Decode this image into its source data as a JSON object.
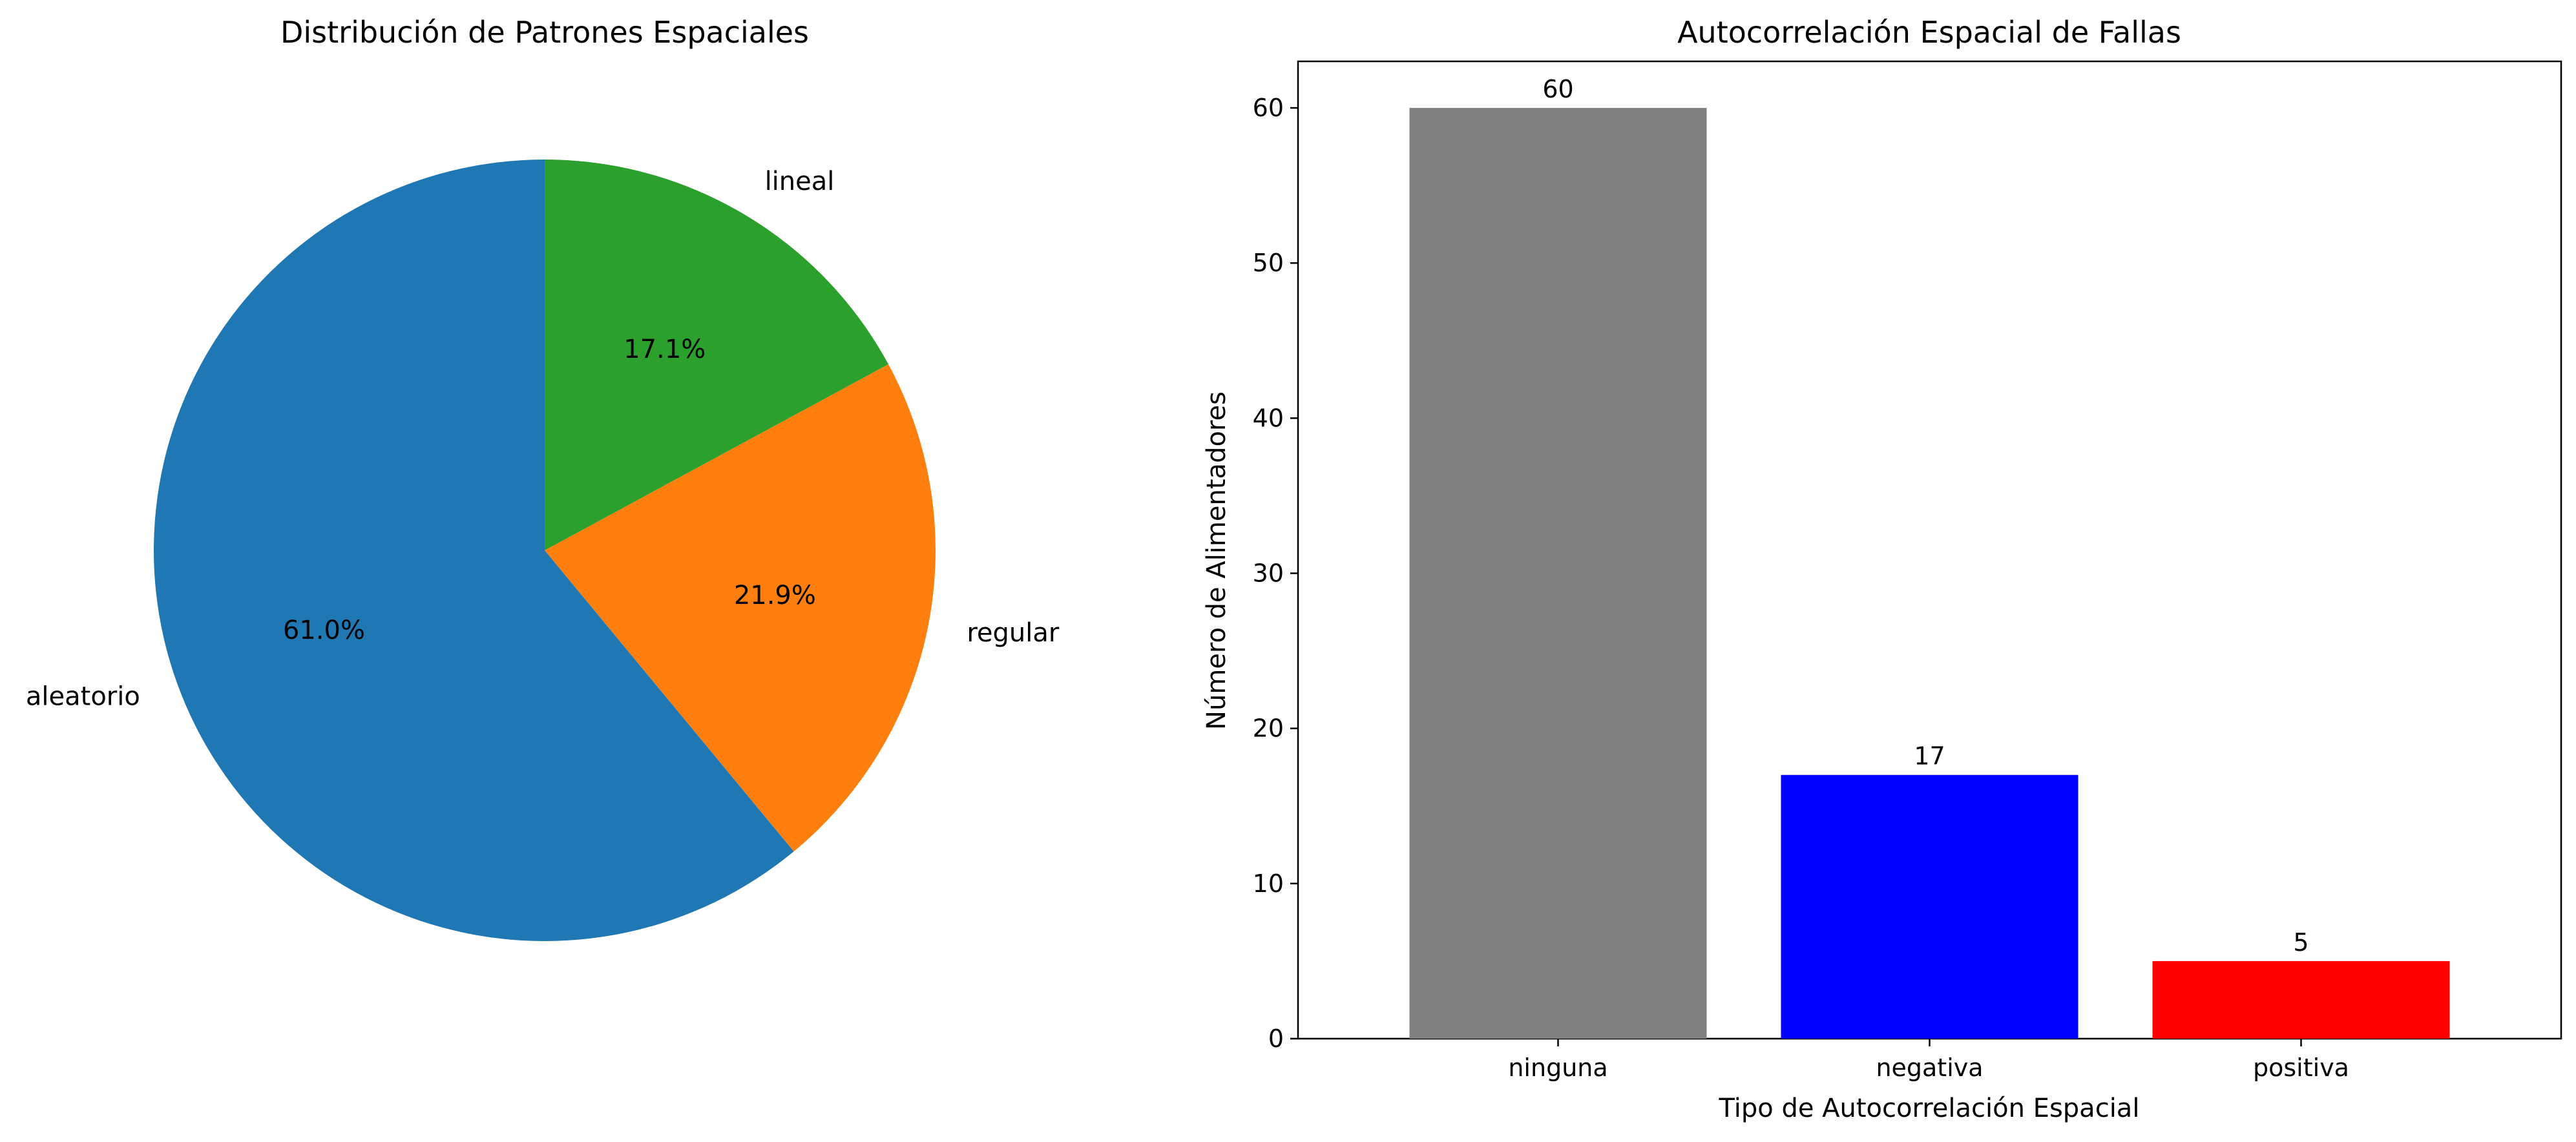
{
  "chart_data": [
    {
      "type": "pie",
      "title": "Distribución de Patrones Espaciales",
      "slices": [
        {
          "label": "aleatorio",
          "value": 61.0,
          "pct_label": "61.0%",
          "color": "#1f77b4"
        },
        {
          "label": "regular",
          "value": 21.9,
          "pct_label": "21.9%",
          "color": "#ff7f0e"
        },
        {
          "label": "lineal",
          "value": 17.1,
          "pct_label": "17.1%",
          "color": "#2ca02c"
        }
      ],
      "start_angle_deg": 90,
      "direction": "counterclockwise"
    },
    {
      "type": "bar",
      "title": "Autocorrelación Espacial de Fallas",
      "xlabel": "Tipo de Autocorrelación Espacial",
      "ylabel": "Número de Alimentadores",
      "categories": [
        "ninguna",
        "negativa",
        "positiva"
      ],
      "values": [
        60,
        17,
        5
      ],
      "data_labels": [
        "60",
        "17",
        "5"
      ],
      "colors": [
        "#808080",
        "#0000ff",
        "#ff0000"
      ],
      "ylim": [
        0,
        63
      ],
      "yticks": [
        0,
        10,
        20,
        30,
        40,
        50,
        60
      ],
      "ytick_labels": [
        "0",
        "10",
        "20",
        "30",
        "40",
        "50",
        "60"
      ],
      "grid": false,
      "legend": "none"
    }
  ]
}
